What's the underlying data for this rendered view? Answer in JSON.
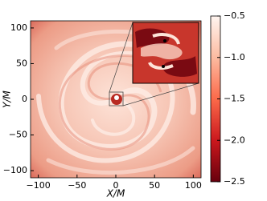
{
  "chart_data": {
    "type": "heatmap",
    "xlabel": "X/M",
    "ylabel": "Y/M",
    "xlim": [
      -110,
      110
    ],
    "ylim": [
      -110,
      110
    ],
    "xticks": [
      {
        "value": -100,
        "label": "−100"
      },
      {
        "value": -50,
        "label": "−50"
      },
      0,
      50,
      100
    ],
    "yticks": [
      {
        "value": -100,
        "label": "−100"
      },
      {
        "value": -50,
        "label": "−50"
      },
      0,
      50,
      100
    ],
    "colorbar": {
      "clim": [
        -2.5,
        -0.5
      ],
      "ticks": [
        {
          "value": -2.5,
          "label": "−2.5"
        },
        {
          "value": -2.0,
          "label": "−2.0"
        },
        {
          "value": -1.5,
          "label": "−1.5"
        },
        {
          "value": -1.0,
          "label": "−1.0"
        },
        {
          "value": -0.5,
          "label": "−0.5"
        }
      ],
      "colors": [
        "#67000d",
        "#cb181d",
        "#fb6a4a",
        "#fcbba1",
        "#fff5f0"
      ]
    }
  }
}
